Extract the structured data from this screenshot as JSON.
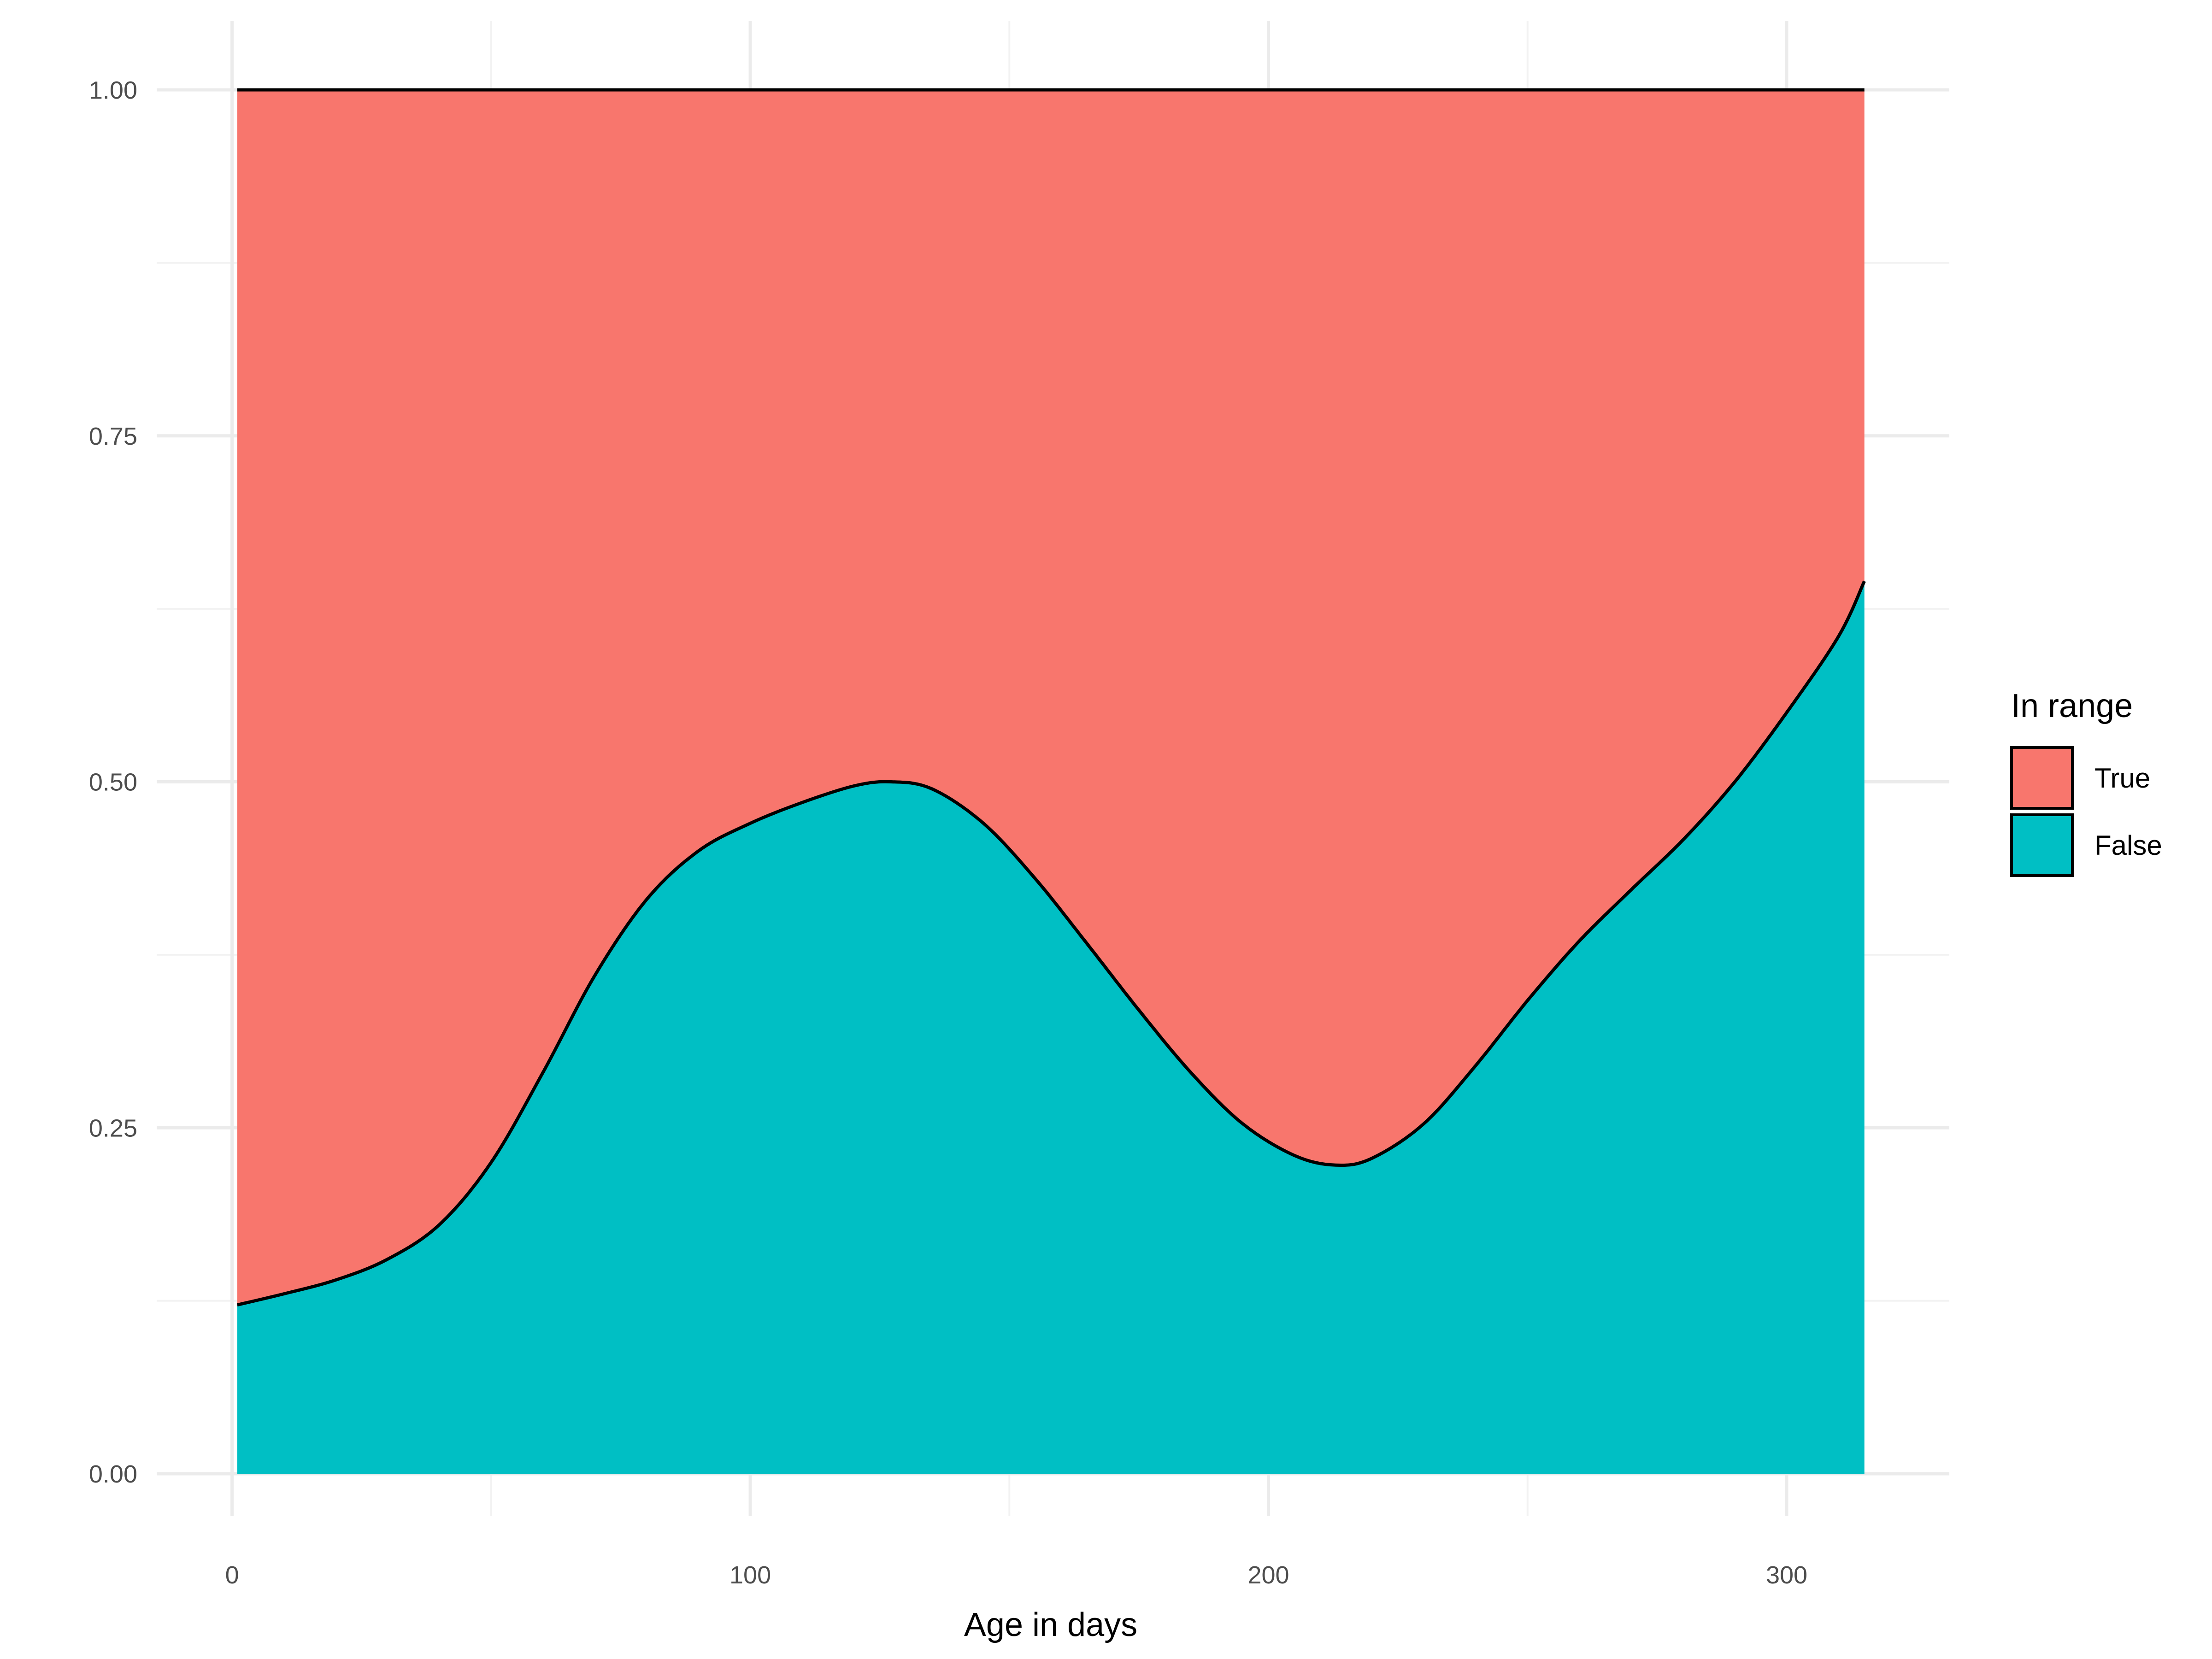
{
  "chart_data": {
    "type": "area",
    "stacked": true,
    "normalized": true,
    "title": "",
    "xlabel": "Age in days",
    "ylabel": "",
    "xlim": [
      0,
      330
    ],
    "ylim": [
      0,
      1
    ],
    "x_ticks": [
      0,
      100,
      200,
      300
    ],
    "x_tick_labels": [
      "0",
      "100",
      "200",
      "300"
    ],
    "y_ticks": [
      0,
      0.25,
      0.5,
      0.75,
      1.0
    ],
    "y_tick_labels": [
      "0.00",
      "0.25",
      "0.50",
      "0.75",
      "1.00"
    ],
    "grid": true,
    "legend": {
      "title": "In range",
      "position": "right",
      "entries": [
        {
          "label": "True",
          "color": "#F8766D"
        },
        {
          "label": "False",
          "color": "#00BFC4"
        }
      ]
    },
    "x": [
      1,
      10,
      20,
      30,
      40,
      50,
      60,
      70,
      80,
      90,
      100,
      110,
      120,
      127,
      135,
      145,
      155,
      165,
      175,
      185,
      195,
      205,
      213,
      220,
      230,
      240,
      250,
      260,
      270,
      280,
      290,
      300,
      310,
      315
    ],
    "series": [
      {
        "name": "False",
        "color": "#00BFC4",
        "values": [
          0.122,
          0.13,
          0.14,
          0.155,
          0.18,
          0.225,
          0.29,
          0.36,
          0.415,
          0.45,
          0.47,
          0.485,
          0.497,
          0.5,
          0.495,
          0.47,
          0.43,
          0.383,
          0.335,
          0.29,
          0.253,
          0.23,
          0.223,
          0.228,
          0.253,
          0.295,
          0.342,
          0.385,
          0.422,
          0.458,
          0.5,
          0.55,
          0.605,
          0.645
        ]
      },
      {
        "name": "True",
        "color": "#F8766D",
        "values": [
          0.878,
          0.87,
          0.86,
          0.845,
          0.82,
          0.775,
          0.71,
          0.64,
          0.585,
          0.55,
          0.53,
          0.515,
          0.503,
          0.5,
          0.505,
          0.53,
          0.57,
          0.617,
          0.665,
          0.71,
          0.747,
          0.77,
          0.777,
          0.772,
          0.747,
          0.705,
          0.658,
          0.615,
          0.578,
          0.542,
          0.5,
          0.45,
          0.395,
          0.355
        ]
      }
    ]
  }
}
